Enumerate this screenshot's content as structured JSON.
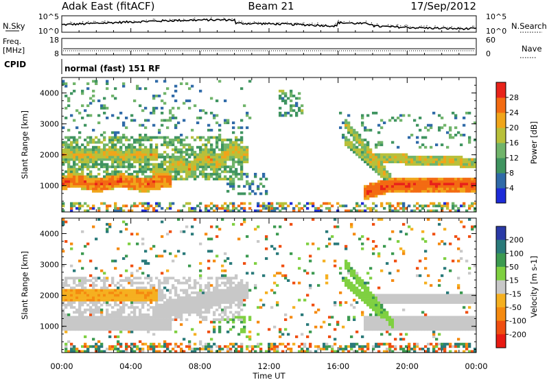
{
  "header": {
    "station": "Adak East (fitACF)",
    "beam": "Beam 21",
    "date": "17/Sep/2012"
  },
  "nsky_panel": {
    "left_label": "N.Sky",
    "right_label": "N.Search",
    "left_ticks": [
      "10^5",
      "10^0"
    ],
    "right_ticks": [
      "10^5",
      "10^0"
    ]
  },
  "freq_panel": {
    "left_label_1": "Freq.",
    "left_label_2": "[MHz]",
    "right_label": "Nave",
    "left_ticks": [
      "18",
      "8"
    ],
    "right_ticks": [
      "60",
      "0"
    ]
  },
  "cpid": {
    "label": "CPID",
    "value": "normal (fast) 151 RF"
  },
  "chart_data": [
    {
      "type": "heatmap",
      "panel": "power",
      "ylabel": "Slant Range [km]",
      "xlabel": "",
      "x_ticks": [
        "00:00",
        "04:00",
        "08:00",
        "12:00",
        "16:00",
        "20:00",
        "00:00"
      ],
      "y_ticks": [
        1000,
        2000,
        3000,
        4000
      ],
      "ylim": [
        150,
        4500
      ],
      "xlim_hours": [
        0,
        24
      ],
      "colorbar": {
        "label": "Power [dB]",
        "ticks": [
          4,
          8,
          12,
          16,
          20,
          24,
          28
        ],
        "colors": [
          "#1d2bd8",
          "#2f6aa8",
          "#3f9460",
          "#70b46a",
          "#b8c03a",
          "#f0a51a",
          "#f36b12",
          "#e8231a"
        ]
      },
      "regions": [
        {
          "name": "strong near-range band",
          "t_start": 0,
          "t_end": 6.2,
          "range_km": [
            900,
            1350
          ],
          "value_db": 26
        },
        {
          "name": "second band",
          "t_start": 0,
          "t_end": 3.5,
          "range_km": [
            1900,
            2200
          ],
          "value_db": 22
        },
        {
          "name": "rising band",
          "t_start": 5.5,
          "t_end": 10.8,
          "range_km": [
            1200,
            2300
          ],
          "value_db": 20
        },
        {
          "name": "evening band",
          "t_start": 16.5,
          "t_end": 24,
          "range_km": [
            800,
            1300
          ],
          "value_db": 28
        },
        {
          "name": "evening upper band",
          "t_start": 18.0,
          "t_end": 24,
          "range_km": [
            1700,
            2000
          ],
          "value_db": 20
        }
      ]
    },
    {
      "type": "heatmap",
      "panel": "velocity",
      "ylabel": "Slant Range [km]",
      "xlabel": "Time UT",
      "x_ticks": [
        "00:00",
        "04:00",
        "08:00",
        "12:00",
        "16:00",
        "20:00",
        "00:00"
      ],
      "y_ticks": [
        1000,
        2000,
        3000,
        4000
      ],
      "ylim": [
        150,
        4500
      ],
      "xlim_hours": [
        0,
        24
      ],
      "colorbar": {
        "label": "Velocity [m s-1]",
        "ticks": [
          200,
          100,
          50,
          15,
          -15,
          -50,
          -100,
          -200
        ],
        "colors": [
          "#2a3aa6",
          "#2a7a7a",
          "#3c9a50",
          "#7fd041",
          "#c8c8c8",
          "#f5b020",
          "#f58a10",
          "#f04e10",
          "#e81a12"
        ]
      },
      "regions": [
        {
          "name": "ground scatter near band",
          "t_start": 0,
          "t_end": 6.2,
          "range_km": [
            900,
            1350
          ],
          "value_ms": 0
        },
        {
          "name": "positive drift band",
          "t_start": 16.5,
          "t_end": 19.5,
          "range_km": [
            1800,
            3300
          ],
          "value_ms": 30
        },
        {
          "name": "negative drift",
          "t_start": 2.0,
          "t_end": 6.0,
          "range_km": [
            1800,
            2200
          ],
          "value_ms": -40
        }
      ]
    }
  ]
}
